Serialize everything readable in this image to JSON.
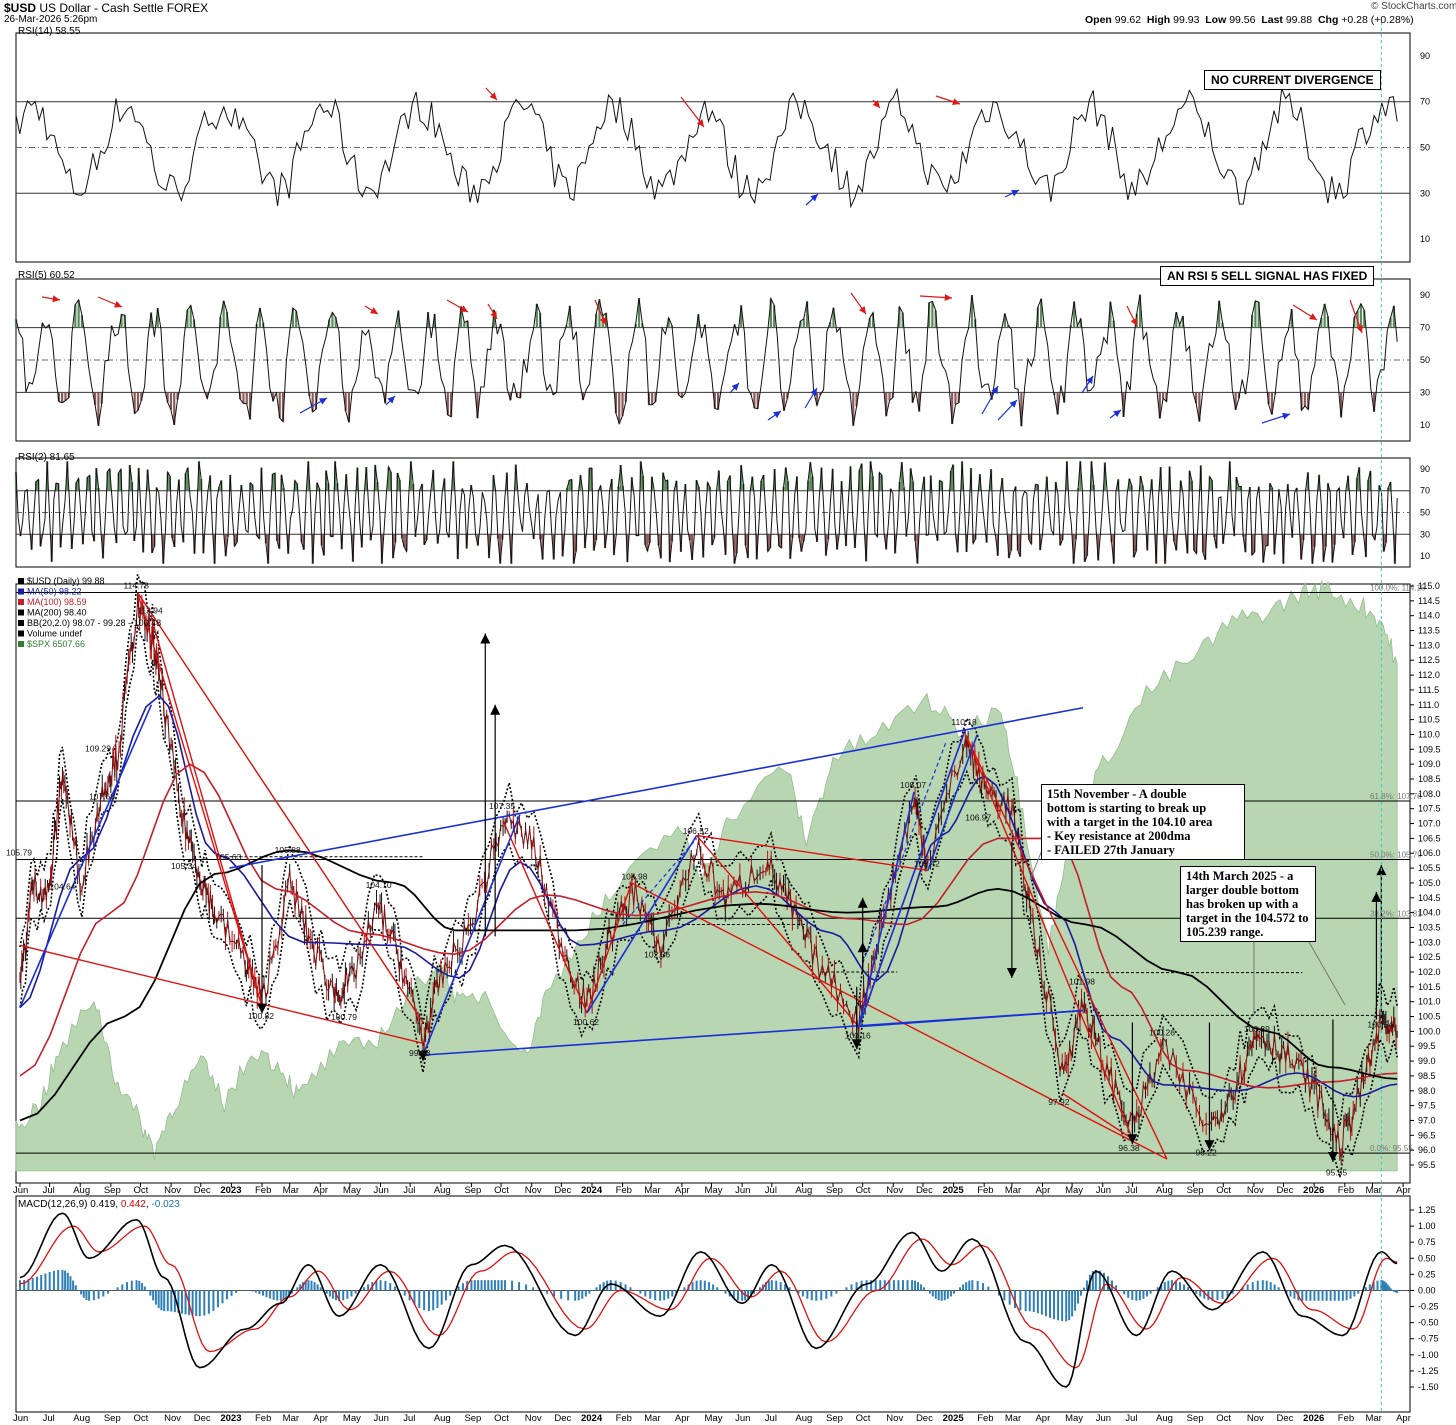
{
  "header": {
    "symbol": "$USD",
    "name": "US Dollar - Cash Settle",
    "exchange": "FOREX",
    "date": "26-Mar-2026 5:26pm",
    "watermark": "© StockCharts.com",
    "open_label": "Open",
    "open": "99.62",
    "high_label": "High",
    "high": "99.93",
    "low_label": "Low",
    "low": "99.56",
    "last_label": "Last",
    "last": "99.88",
    "chg_label": "Chg",
    "chg": "+0.28 (+0.28%)"
  },
  "panels": {
    "rsi14": {
      "label": "RSI(14) 58.55",
      "levels": [
        90,
        70,
        50,
        30,
        10
      ]
    },
    "rsi5": {
      "label": "RSI(5) 60.52",
      "levels": [
        90,
        70,
        50,
        30,
        10
      ]
    },
    "rsi2": {
      "label": "RSI(2) 81.65",
      "levels": [
        90,
        70,
        50,
        30,
        10
      ]
    },
    "price": {
      "legend": [
        {
          "text": "$USD (Daily) 99.88",
          "color": "#000000"
        },
        {
          "text": "MA(50) 98.22",
          "color": "#1a1aa0"
        },
        {
          "text": "MA(100) 98.59",
          "color": "#c41e2a"
        },
        {
          "text": "MA(200) 98.40",
          "color": "#000000"
        },
        {
          "text": "BB(20,2.0) 98.07 - 99.28 - 100.48",
          "color": "#000000"
        },
        {
          "text": "Volume undef",
          "color": "#000000"
        },
        {
          "text": "$SPX 6507.66",
          "color": "#2e7d32"
        }
      ],
      "fib_labels": [
        "100.0%: 114.15",
        "61.8%: 107.76",
        "50.0%: 105.79",
        "38.2%: 103.81",
        "0.0%: 95.55"
      ]
    },
    "macd": {
      "label_black": "MACD(12,26,9) 0.419",
      "label_red": "0.442",
      "label_blue": "-0.023"
    }
  },
  "annotations": {
    "rsi14_box": "NO CURRENT DIVERGENCE",
    "rsi5_box": "AN RSI 5 SELL SIGNAL HAS FIXED",
    "nov_note": "15th November - A double\nbottom is starting to break up\nwith a target in the 104.10 area\n- Key resistance at 200dma\n- FAILED 27th January",
    "mar_note": "14th March 2025 - a\nlarger double bottom\nhas broken up with a\ntarget in the 104.572 to\n105.239 range."
  },
  "chart_data": {
    "type": "line",
    "title": "$USD US Dollar - Cash Settle FOREX",
    "x_axis_months": [
      "Jun",
      "Jul",
      "Aug",
      "Sep",
      "Oct",
      "Nov",
      "Dec",
      "2023",
      "Feb",
      "Mar",
      "Apr",
      "May",
      "Jun",
      "Jul",
      "Aug",
      "Sep",
      "Oct",
      "Nov",
      "Dec",
      "2024",
      "Feb",
      "Mar",
      "Apr",
      "May",
      "Jun",
      "Jul",
      "Aug",
      "Sep",
      "Oct",
      "Nov",
      "Dec",
      "2025",
      "Feb",
      "Mar",
      "Apr",
      "May",
      "Jun",
      "Jul",
      "Aug",
      "Sep",
      "Oct",
      "Nov",
      "Dec",
      "2026",
      "Feb",
      "Mar",
      "Apr"
    ],
    "price_axis": {
      "ylim": [
        95.5,
        115.0
      ],
      "ticks": [
        95.5,
        96.0,
        96.5,
        97.0,
        97.5,
        98.0,
        98.5,
        99.0,
        99.5,
        100.0,
        100.5,
        101.0,
        101.5,
        102.0,
        102.5,
        103.0,
        103.5,
        104.0,
        104.5,
        105.0,
        105.5,
        106.0,
        106.5,
        107.0,
        107.5,
        108.0,
        108.5,
        109.0,
        109.5,
        110.0,
        110.5,
        111.0,
        111.5,
        112.0,
        112.5,
        113.0,
        113.5,
        114.0,
        114.5,
        115.0
      ]
    },
    "macd_axis": {
      "ylim": [
        -1.5,
        1.25
      ],
      "ticks": [
        1.25,
        1.0,
        0.75,
        0.5,
        0.25,
        0.0,
        -0.25,
        -0.5,
        -0.75,
        -1.0,
        -1.25,
        -1.5
      ]
    },
    "price_labels": [
      {
        "date": "2022-06-01",
        "value": 105.79
      },
      {
        "date": "2022-09-28",
        "value": 114.78
      },
      {
        "date": "2022-10-12",
        "value": 113.94
      },
      {
        "date": "2022-08-20",
        "value": 109.29
      },
      {
        "date": "2022-08-24",
        "value": 107.68
      },
      {
        "date": "2022-07-15",
        "value": 104.64
      },
      {
        "date": "2022-11-15",
        "value": 105.34
      },
      {
        "date": "2022-12-30",
        "value": 105.63
      },
      {
        "date": "2023-02-28",
        "value": 105.88
      },
      {
        "date": "2023-02-01",
        "value": 100.82
      },
      {
        "date": "2023-04-26",
        "value": 100.79
      },
      {
        "date": "2023-05-31",
        "value": 104.7
      },
      {
        "date": "2023-07-14",
        "value": 99.58
      },
      {
        "date": "2023-10-03",
        "value": 107.35
      },
      {
        "date": "2023-12-27",
        "value": 100.62
      },
      {
        "date": "2024-02-14",
        "value": 104.98
      },
      {
        "date": "2024-03-08",
        "value": 102.36
      },
      {
        "date": "2024-04-16",
        "value": 106.52
      },
      {
        "date": "2024-09-27",
        "value": 100.16
      },
      {
        "date": "2024-11-22",
        "value": 108.07
      },
      {
        "date": "2024-12-06",
        "value": 105.42
      },
      {
        "date": "2025-01-13",
        "value": 110.18
      },
      {
        "date": "2025-01-27",
        "value": 106.97
      },
      {
        "date": "2025-04-21",
        "value": 97.92
      },
      {
        "date": "2025-05-12",
        "value": 101.98
      },
      {
        "date": "2025-07-01",
        "value": 96.38
      },
      {
        "date": "2025-08-01",
        "value": 100.26
      },
      {
        "date": "2025-09-17",
        "value": 96.22
      },
      {
        "date": "2025-11-05",
        "value": 100.39
      },
      {
        "date": "2026-01-27",
        "value": 95.55
      },
      {
        "date": "2026-03-10",
        "value": 100.54
      }
    ],
    "series": [
      {
        "name": "$USD (Daily)",
        "values": [
          [
            "2022-06-01",
            101.5
          ],
          [
            "2022-06-14",
            105.0
          ],
          [
            "2022-06-30",
            104.6
          ],
          [
            "2022-07-14",
            108.8
          ],
          [
            "2022-08-01",
            105.0
          ],
          [
            "2022-08-25",
            108.2
          ],
          [
            "2022-09-08",
            109.3
          ],
          [
            "2022-09-27",
            114.2
          ],
          [
            "2022-10-12",
            113.3
          ],
          [
            "2022-10-20",
            112.0
          ],
          [
            "2022-11-10",
            107.5
          ],
          [
            "2022-11-30",
            105.3
          ],
          [
            "2022-12-15",
            104.0
          ],
          [
            "2023-01-15",
            102.4
          ],
          [
            "2023-02-01",
            101.0
          ],
          [
            "2023-03-01",
            105.0
          ],
          [
            "2023-03-20",
            103.2
          ],
          [
            "2023-04-15",
            101.3
          ],
          [
            "2023-05-01",
            101.6
          ],
          [
            "2023-05-30",
            104.2
          ],
          [
            "2023-06-20",
            102.5
          ],
          [
            "2023-07-14",
            99.7
          ],
          [
            "2023-08-01",
            101.8
          ],
          [
            "2023-08-31",
            103.5
          ],
          [
            "2023-10-03",
            107.1
          ],
          [
            "2023-11-01",
            106.4
          ],
          [
            "2023-12-01",
            103.0
          ],
          [
            "2023-12-27",
            100.8
          ],
          [
            "2024-01-20",
            103.3
          ],
          [
            "2024-02-14",
            104.8
          ],
          [
            "2024-03-08",
            102.7
          ],
          [
            "2024-04-16",
            106.2
          ],
          [
            "2024-05-15",
            104.4
          ],
          [
            "2024-06-25",
            105.8
          ],
          [
            "2024-07-20",
            104.2
          ],
          [
            "2024-08-15",
            102.4
          ],
          [
            "2024-09-27",
            100.4
          ],
          [
            "2024-10-20",
            103.6
          ],
          [
            "2024-11-22",
            107.8
          ],
          [
            "2024-12-06",
            105.7
          ],
          [
            "2025-01-13",
            109.8
          ],
          [
            "2025-02-01",
            108.2
          ],
          [
            "2025-03-01",
            107.5
          ],
          [
            "2025-03-20",
            104.0
          ],
          [
            "2025-04-21",
            98.6
          ],
          [
            "2025-05-12",
            101.0
          ],
          [
            "2025-06-01",
            99.0
          ],
          [
            "2025-07-01",
            96.8
          ],
          [
            "2025-08-01",
            99.4
          ],
          [
            "2025-09-17",
            96.7
          ],
          [
            "2025-10-15",
            98.4
          ],
          [
            "2025-11-05",
            100.0
          ],
          [
            "2025-12-01",
            99.3
          ],
          [
            "2026-01-01",
            98.1
          ],
          [
            "2026-01-27",
            96.1
          ],
          [
            "2026-02-15",
            97.8
          ],
          [
            "2026-03-10",
            100.3
          ],
          [
            "2026-03-26",
            99.9
          ]
        ]
      },
      {
        "name": "MA(50)",
        "values": [
          [
            "2022-06-01",
            100.8
          ],
          [
            "2022-08-01",
            105.8
          ],
          [
            "2022-10-20",
            111.3
          ],
          [
            "2022-12-15",
            106.0
          ],
          [
            "2023-03-15",
            103.0
          ],
          [
            "2023-06-15",
            102.9
          ],
          [
            "2023-08-20",
            101.8
          ],
          [
            "2023-10-20",
            105.7
          ],
          [
            "2023-12-20",
            102.9
          ],
          [
            "2024-03-15",
            103.4
          ],
          [
            "2024-06-15",
            104.9
          ],
          [
            "2024-09-01",
            103.3
          ],
          [
            "2024-10-15",
            101.7
          ],
          [
            "2024-12-20",
            106.6
          ],
          [
            "2025-02-01",
            108.6
          ],
          [
            "2025-04-15",
            104.0
          ],
          [
            "2025-06-10",
            99.8
          ],
          [
            "2025-08-01",
            98.2
          ],
          [
            "2025-10-15",
            98.0
          ],
          [
            "2025-12-15",
            98.6
          ],
          [
            "2026-02-10",
            97.8
          ],
          [
            "2026-03-26",
            98.22
          ]
        ]
      },
      {
        "name": "MA(100)",
        "values": [
          [
            "2022-06-01",
            98.5
          ],
          [
            "2022-09-01",
            104.0
          ],
          [
            "2022-11-20",
            109.0
          ],
          [
            "2023-02-15",
            104.8
          ],
          [
            "2023-05-15",
            103.3
          ],
          [
            "2023-08-15",
            102.6
          ],
          [
            "2023-11-15",
            104.6
          ],
          [
            "2024-02-15",
            103.9
          ],
          [
            "2024-06-15",
            104.7
          ],
          [
            "2024-09-15",
            103.8
          ],
          [
            "2024-11-15",
            103.6
          ],
          [
            "2025-02-15",
            106.5
          ],
          [
            "2025-04-15",
            106.5
          ],
          [
            "2025-06-20",
            101.5
          ],
          [
            "2025-08-20",
            98.7
          ],
          [
            "2025-11-15",
            98.1
          ],
          [
            "2026-01-15",
            98.3
          ],
          [
            "2026-03-26",
            98.59
          ]
        ]
      },
      {
        "name": "MA(200)",
        "values": [
          [
            "2022-06-01",
            97.0
          ],
          [
            "2022-09-15",
            100.5
          ],
          [
            "2022-12-15",
            105.3
          ],
          [
            "2023-03-01",
            106.1
          ],
          [
            "2023-06-15",
            105.0
          ],
          [
            "2023-08-15",
            103.4
          ],
          [
            "2023-12-15",
            103.4
          ],
          [
            "2024-06-15",
            104.3
          ],
          [
            "2024-09-15",
            104.0
          ],
          [
            "2024-12-15",
            104.2
          ],
          [
            "2025-02-15",
            104.8
          ],
          [
            "2025-05-15",
            103.6
          ],
          [
            "2025-08-15",
            102.0
          ],
          [
            "2025-11-15",
            100.0
          ],
          [
            "2026-01-15",
            98.8
          ],
          [
            "2026-03-26",
            98.4
          ]
        ]
      }
    ],
    "macd_series": [
      {
        "name": "MACD",
        "values": [
          [
            "2022-06-01",
            0.2
          ],
          [
            "2022-07-14",
            1.2
          ],
          [
            "2022-08-10",
            0.5
          ],
          [
            "2022-09-27",
            1.1
          ],
          [
            "2022-10-25",
            0.2
          ],
          [
            "2022-11-30",
            -1.2
          ],
          [
            "2023-01-15",
            -0.6
          ],
          [
            "2023-02-20",
            -0.2
          ],
          [
            "2023-03-20",
            0.4
          ],
          [
            "2023-04-20",
            -0.4
          ],
          [
            "2023-06-01",
            0.4
          ],
          [
            "2023-07-20",
            -0.9
          ],
          [
            "2023-09-01",
            0.4
          ],
          [
            "2023-10-05",
            0.7
          ],
          [
            "2023-12-15",
            -0.7
          ],
          [
            "2024-01-20",
            0.1
          ],
          [
            "2024-03-10",
            -0.4
          ],
          [
            "2024-04-20",
            0.6
          ],
          [
            "2024-06-01",
            -0.2
          ],
          [
            "2024-07-01",
            0.4
          ],
          [
            "2024-08-15",
            -0.9
          ],
          [
            "2024-10-05",
            0.1
          ],
          [
            "2024-11-20",
            0.9
          ],
          [
            "2024-12-20",
            0.3
          ],
          [
            "2025-01-20",
            0.8
          ],
          [
            "2025-03-15",
            -0.8
          ],
          [
            "2025-04-25",
            -1.5
          ],
          [
            "2025-05-25",
            0.3
          ],
          [
            "2025-07-05",
            -0.7
          ],
          [
            "2025-08-10",
            0.3
          ],
          [
            "2025-09-20",
            -0.3
          ],
          [
            "2025-11-10",
            0.6
          ],
          [
            "2025-12-20",
            -0.4
          ],
          [
            "2026-01-30",
            -0.7
          ],
          [
            "2026-03-10",
            0.6
          ],
          [
            "2026-03-26",
            0.419
          ]
        ]
      },
      {
        "name": "Signal",
        "values": [
          [
            "2022-06-01",
            0.1
          ],
          [
            "2022-07-25",
            1.0
          ],
          [
            "2022-08-20",
            0.6
          ],
          [
            "2022-10-05",
            1.0
          ],
          [
            "2022-11-01",
            0.4
          ],
          [
            "2022-12-10",
            -0.95
          ],
          [
            "2023-01-25",
            -0.6
          ],
          [
            "2023-03-01",
            -0.1
          ],
          [
            "2023-03-30",
            0.3
          ],
          [
            "2023-05-01",
            -0.3
          ],
          [
            "2023-06-10",
            0.3
          ],
          [
            "2023-07-30",
            -0.7
          ],
          [
            "2023-09-10",
            0.3
          ],
          [
            "2023-10-15",
            0.6
          ],
          [
            "2023-12-25",
            -0.6
          ],
          [
            "2024-01-30",
            0.0
          ],
          [
            "2024-03-20",
            -0.3
          ],
          [
            "2024-04-30",
            0.5
          ],
          [
            "2024-06-10",
            -0.1
          ],
          [
            "2024-07-10",
            0.3
          ],
          [
            "2024-08-25",
            -0.8
          ],
          [
            "2024-10-15",
            0.0
          ],
          [
            "2024-11-30",
            0.8
          ],
          [
            "2024-12-30",
            0.4
          ],
          [
            "2025-01-30",
            0.7
          ],
          [
            "2025-03-25",
            -0.6
          ],
          [
            "2025-05-05",
            -1.2
          ],
          [
            "2025-06-05",
            0.1
          ],
          [
            "2025-07-15",
            -0.6
          ],
          [
            "2025-08-20",
            0.2
          ],
          [
            "2025-09-30",
            -0.2
          ],
          [
            "2025-11-20",
            0.5
          ],
          [
            "2025-12-30",
            -0.3
          ],
          [
            "2026-02-10",
            -0.6
          ],
          [
            "2026-03-15",
            0.5
          ],
          [
            "2026-03-26",
            0.442
          ]
        ]
      }
    ]
  }
}
